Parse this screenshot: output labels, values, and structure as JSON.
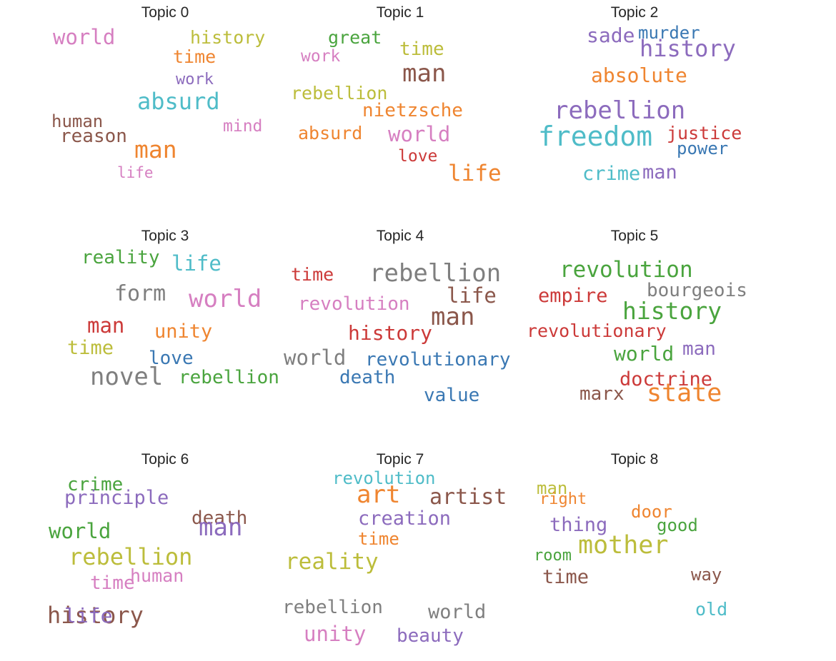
{
  "colors": {
    "blue": "#3a78b3",
    "orange": "#ef8530",
    "green": "#4aa43e",
    "red": "#cc3a39",
    "purple": "#8c6bbd",
    "brown": "#8b574b",
    "pink": "#d67fc1",
    "gray": "#7f7f7f",
    "olive": "#bcbd3b",
    "cyan": "#4fbcc8"
  },
  "chart_data": [
    {
      "type": "wordcloud",
      "title": "Topic 0",
      "words": [
        {
          "text": "world",
          "weight": 0.62,
          "color": "pink"
        },
        {
          "text": "history",
          "weight": 0.45,
          "color": "olive"
        },
        {
          "text": "time",
          "weight": 0.45,
          "color": "orange"
        },
        {
          "text": "work",
          "weight": 0.35,
          "color": "purple"
        },
        {
          "text": "absurd",
          "weight": 0.75,
          "color": "cyan"
        },
        {
          "text": "human",
          "weight": 0.4,
          "color": "brown"
        },
        {
          "text": "mind",
          "weight": 0.38,
          "color": "pink"
        },
        {
          "text": "reason",
          "weight": 0.48,
          "color": "brown"
        },
        {
          "text": "man",
          "weight": 0.78,
          "color": "orange"
        },
        {
          "text": "life",
          "weight": 0.3,
          "color": "pink"
        }
      ]
    },
    {
      "type": "wordcloud",
      "title": "Topic 1",
      "words": [
        {
          "text": "great",
          "weight": 0.45,
          "color": "green"
        },
        {
          "text": "work",
          "weight": 0.38,
          "color": "pink"
        },
        {
          "text": "time",
          "weight": 0.5,
          "color": "olive"
        },
        {
          "text": "man",
          "weight": 0.85,
          "color": "brown"
        },
        {
          "text": "rebellion",
          "weight": 0.45,
          "color": "olive"
        },
        {
          "text": "nietzsche",
          "weight": 0.5,
          "color": "orange"
        },
        {
          "text": "absurd",
          "weight": 0.45,
          "color": "orange"
        },
        {
          "text": "world",
          "weight": 0.62,
          "color": "pink"
        },
        {
          "text": "love",
          "weight": 0.38,
          "color": "red"
        },
        {
          "text": "life",
          "weight": 0.7,
          "color": "orange"
        }
      ]
    },
    {
      "type": "wordcloud",
      "title": "Topic 2",
      "words": [
        {
          "text": "sade",
          "weight": 0.58,
          "color": "purple"
        },
        {
          "text": "murder",
          "weight": 0.42,
          "color": "blue"
        },
        {
          "text": "history",
          "weight": 0.75,
          "color": "purple"
        },
        {
          "text": "absolute",
          "weight": 0.58,
          "color": "orange"
        },
        {
          "text": "rebellion",
          "weight": 0.85,
          "color": "purple"
        },
        {
          "text": "freedom",
          "weight": 1.0,
          "color": "cyan"
        },
        {
          "text": "justice",
          "weight": 0.45,
          "color": "red"
        },
        {
          "text": "power",
          "weight": 0.4,
          "color": "blue"
        },
        {
          "text": "crime",
          "weight": 0.55,
          "color": "cyan"
        },
        {
          "text": "man",
          "weight": 0.55,
          "color": "purple"
        }
      ]
    },
    {
      "type": "wordcloud",
      "title": "Topic 3",
      "words": [
        {
          "text": "reality",
          "weight": 0.5,
          "color": "green"
        },
        {
          "text": "life",
          "weight": 0.62,
          "color": "cyan"
        },
        {
          "text": "form",
          "weight": 0.65,
          "color": "gray"
        },
        {
          "text": "world",
          "weight": 0.85,
          "color": "pink"
        },
        {
          "text": "man",
          "weight": 0.62,
          "color": "red"
        },
        {
          "text": "unity",
          "weight": 0.55,
          "color": "orange"
        },
        {
          "text": "time",
          "weight": 0.55,
          "color": "olive"
        },
        {
          "text": "love",
          "weight": 0.5,
          "color": "blue"
        },
        {
          "text": "novel",
          "weight": 0.85,
          "color": "gray"
        },
        {
          "text": "rebellion",
          "weight": 0.48,
          "color": "green"
        }
      ]
    },
    {
      "type": "wordcloud",
      "title": "Topic 4",
      "words": [
        {
          "text": "time",
          "weight": 0.45,
          "color": "red"
        },
        {
          "text": "rebellion",
          "weight": 0.85,
          "color": "gray"
        },
        {
          "text": "life",
          "weight": 0.62,
          "color": "brown"
        },
        {
          "text": "revolution",
          "weight": 0.5,
          "color": "pink"
        },
        {
          "text": "man",
          "weight": 0.85,
          "color": "brown"
        },
        {
          "text": "history",
          "weight": 0.58,
          "color": "red"
        },
        {
          "text": "world",
          "weight": 0.62,
          "color": "gray"
        },
        {
          "text": "revolutionary",
          "weight": 0.48,
          "color": "blue"
        },
        {
          "text": "death",
          "weight": 0.48,
          "color": "blue"
        },
        {
          "text": "value",
          "weight": 0.48,
          "color": "blue"
        }
      ]
    },
    {
      "type": "wordcloud",
      "title": "Topic 5",
      "words": [
        {
          "text": "revolution",
          "weight": 0.7,
          "color": "green"
        },
        {
          "text": "empire",
          "weight": 0.55,
          "color": "red"
        },
        {
          "text": "bourgeois",
          "weight": 0.48,
          "color": "gray"
        },
        {
          "text": "history",
          "weight": 0.78,
          "color": "green"
        },
        {
          "text": "revolutionary",
          "weight": 0.45,
          "color": "red"
        },
        {
          "text": "world",
          "weight": 0.58,
          "color": "green"
        },
        {
          "text": "man",
          "weight": 0.5,
          "color": "purple"
        },
        {
          "text": "doctrine",
          "weight": 0.55,
          "color": "red"
        },
        {
          "text": "marx",
          "weight": 0.52,
          "color": "brown"
        },
        {
          "text": "state",
          "weight": 0.88,
          "color": "orange"
        }
      ]
    },
    {
      "type": "wordcloud",
      "title": "Topic 6",
      "words": [
        {
          "text": "crime",
          "weight": 0.5,
          "color": "green"
        },
        {
          "text": "principle",
          "weight": 0.55,
          "color": "purple"
        },
        {
          "text": "death",
          "weight": 0.5,
          "color": "brown"
        },
        {
          "text": "world",
          "weight": 0.62,
          "color": "green"
        },
        {
          "text": "man",
          "weight": 0.85,
          "color": "purple"
        },
        {
          "text": "rebellion",
          "weight": 0.75,
          "color": "olive"
        },
        {
          "text": "human",
          "weight": 0.45,
          "color": "pink"
        },
        {
          "text": "time",
          "weight": 0.5,
          "color": "pink"
        },
        {
          "text": "history",
          "weight": 0.75,
          "color": "brown"
        },
        {
          "text": "life",
          "weight": 0.58,
          "color": "purple"
        }
      ]
    },
    {
      "type": "wordcloud",
      "title": "Topic 7",
      "words": [
        {
          "text": "revolution",
          "weight": 0.42,
          "color": "cyan"
        },
        {
          "text": "art",
          "weight": 0.85,
          "color": "orange"
        },
        {
          "text": "artist",
          "weight": 0.68,
          "color": "brown"
        },
        {
          "text": "creation",
          "weight": 0.55,
          "color": "purple"
        },
        {
          "text": "time",
          "weight": 0.42,
          "color": "orange"
        },
        {
          "text": "reality",
          "weight": 0.7,
          "color": "olive"
        },
        {
          "text": "rebellion",
          "weight": 0.48,
          "color": "gray"
        },
        {
          "text": "world",
          "weight": 0.55,
          "color": "gray"
        },
        {
          "text": "beauty",
          "weight": 0.48,
          "color": "purple"
        },
        {
          "text": "unity",
          "weight": 0.62,
          "color": "pink"
        }
      ]
    },
    {
      "type": "wordcloud",
      "title": "Topic 8",
      "words": [
        {
          "text": "man",
          "weight": 0.4,
          "color": "olive"
        },
        {
          "text": "right",
          "weight": 0.35,
          "color": "orange"
        },
        {
          "text": "door",
          "weight": 0.4,
          "color": "orange"
        },
        {
          "text": "thing",
          "weight": 0.55,
          "color": "purple"
        },
        {
          "text": "good",
          "weight": 0.4,
          "color": "green"
        },
        {
          "text": "mother",
          "weight": 0.88,
          "color": "olive"
        },
        {
          "text": "room",
          "weight": 0.35,
          "color": "green"
        },
        {
          "text": "time",
          "weight": 0.55,
          "color": "brown"
        },
        {
          "text": "way",
          "weight": 0.42,
          "color": "brown"
        },
        {
          "text": "old",
          "weight": 0.45,
          "color": "cyan"
        }
      ]
    }
  ]
}
